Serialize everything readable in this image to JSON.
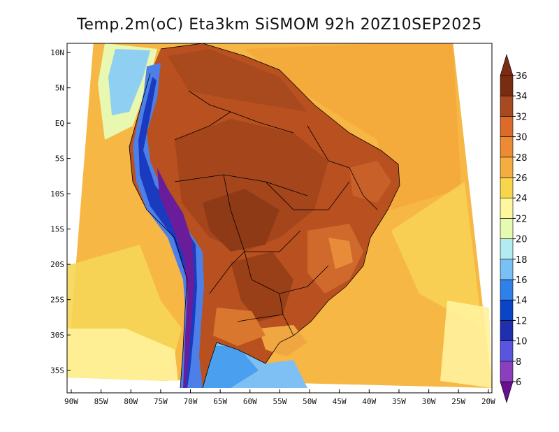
{
  "title": "Temp.2m(oC) Eta3km SiSMOM 92h 20Z10SEP2025",
  "map": {
    "lon_ticks": [
      "90W",
      "85W",
      "80W",
      "75W",
      "70W",
      "65W",
      "60W",
      "55W",
      "50W",
      "45W",
      "40W",
      "35W",
      "30W",
      "25W",
      "20W"
    ],
    "lon_values": [
      -90,
      -85,
      -80,
      -75,
      -70,
      -65,
      -60,
      -55,
      -50,
      -45,
      -40,
      -35,
      -30,
      -25,
      -20
    ],
    "lat_ticks": [
      "10N",
      "5N",
      "EQ",
      "5S",
      "10S",
      "15S",
      "20S",
      "25S",
      "30S",
      "35S"
    ],
    "lat_values": [
      10,
      5,
      0,
      -5,
      -10,
      -15,
      -20,
      -25,
      -30,
      -35
    ],
    "lon_range": [
      -90.7,
      -19.4
    ],
    "lat_range": [
      -38.2,
      11.3
    ]
  },
  "colorbar": {
    "labels": [
      "6",
      "8",
      "10",
      "12",
      "14",
      "16",
      "18",
      "20",
      "22",
      "24",
      "26",
      "28",
      "30",
      "32",
      "34",
      "36"
    ],
    "colors": [
      "#6a0d8f",
      "#8a3fbf",
      "#5a55e0",
      "#1f2fb0",
      "#0a45c8",
      "#2f80e8",
      "#79c0f5",
      "#b3ecf0",
      "#e6fab0",
      "#fff7a0",
      "#f7d64c",
      "#f5ad40",
      "#ed8a34",
      "#dc6a28",
      "#a84a20",
      "#7a2c10"
    ]
  }
}
